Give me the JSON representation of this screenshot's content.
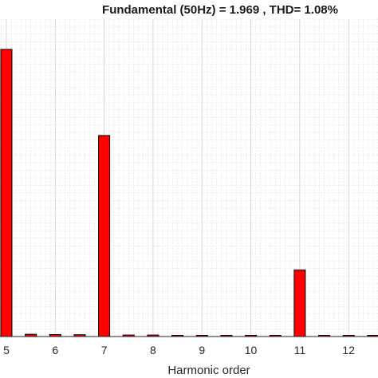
{
  "chart_data": {
    "type": "bar",
    "title": "Fundamental (50Hz) = 1.969 , THD= 1.08%",
    "xlabel": "Harmonic order",
    "ylabel": "",
    "x": [
      5,
      5.5,
      6,
      6.5,
      7,
      7.5,
      8,
      8.5,
      9,
      9.5,
      10,
      10.5,
      11,
      11.5,
      12,
      12.5
    ],
    "values": [
      0.95,
      0.0075,
      0.0065,
      0.006,
      0.665,
      0.005,
      0.005,
      0.004,
      0.004,
      0.003,
      0.004,
      0.003,
      0.22,
      0.003,
      0.003,
      0.003
    ],
    "xticks": [
      "5",
      "6",
      "7",
      "8",
      "9",
      "10",
      "11",
      "12"
    ],
    "xtick_values": [
      5,
      6,
      7,
      8,
      9,
      10,
      11,
      12
    ],
    "xlim": [
      4.87,
      12.6
    ],
    "ylim": [
      0,
      1.05
    ],
    "grid": true,
    "colors": {
      "bar_fill": "#ff0000",
      "bar_edge": "#000000"
    }
  }
}
